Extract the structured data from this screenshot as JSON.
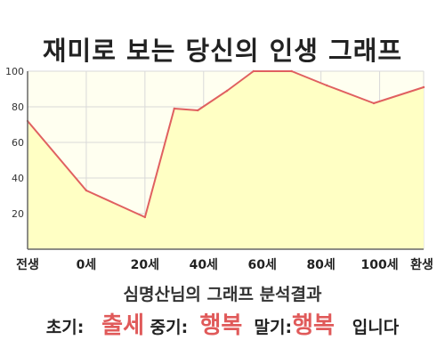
{
  "title": "재미로 보는 당신의 인생 그래프",
  "colors": {
    "line": "#e06060",
    "fill": "#ffffc4",
    "plot_bg": "#fffff0",
    "grid": "#d9d9d9",
    "axis": "#666666",
    "highlight": "#e05a5a"
  },
  "chart_data": {
    "type": "area",
    "x": [
      "전생",
      "0세",
      "20세",
      "40세",
      "60세",
      "80세",
      "100세",
      "환생"
    ],
    "x_values": [
      -20,
      0,
      20,
      40,
      60,
      80,
      100,
      115
    ],
    "points": [
      {
        "x": -20,
        "y": 72
      },
      {
        "x": 0,
        "y": 33
      },
      {
        "x": 20,
        "y": 18
      },
      {
        "x": 30,
        "y": 79
      },
      {
        "x": 38,
        "y": 78
      },
      {
        "x": 48,
        "y": 89
      },
      {
        "x": 57,
        "y": 100
      },
      {
        "x": 70,
        "y": 100
      },
      {
        "x": 82,
        "y": 92
      },
      {
        "x": 98,
        "y": 82
      },
      {
        "x": 115,
        "y": 91
      }
    ],
    "yticks": [
      20,
      40,
      60,
      80,
      100
    ],
    "ylim": [
      0,
      100
    ],
    "grid": true,
    "legend": "none"
  },
  "summary": {
    "line1": "심명산님의 그래프 분석결과",
    "early_label": "초기:",
    "early_value": "출세",
    "mid_label": "중기:",
    "mid_value": "행복",
    "late_label": "말기:",
    "late_value": "행복",
    "ending": "입니다"
  }
}
